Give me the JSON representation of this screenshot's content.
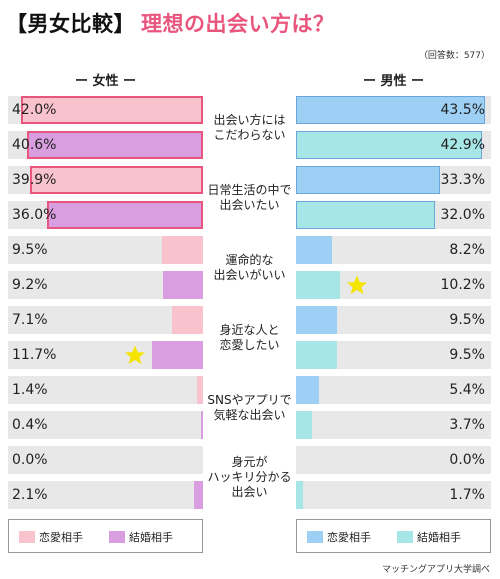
{
  "title": {
    "prefix": "【男女比較】",
    "main": "理想の出会い方は？"
  },
  "sample_note": "（回答数：577）",
  "source": "マッチングアプリ大学調べ",
  "colors": {
    "female_love": "#f9c3ce",
    "female_marriage": "#d99ee0",
    "male_love": "#9ed0f6",
    "male_marriage": "#a7e6e6",
    "accent": "#e9567d",
    "star": "#f5e400",
    "track": "#e8e8e8"
  },
  "chart_data": {
    "type": "bar",
    "title": "理想の出会い方は？",
    "panels": [
      {
        "name": "女性",
        "header": "ー 女性 ー"
      },
      {
        "name": "男性",
        "header": "ー 男性 ー"
      }
    ],
    "categories": [
      [
        "出会い方には",
        "こだわらない"
      ],
      [
        "日常生活の中で",
        "出会いたい"
      ],
      [
        "運命的な",
        "出会いがいい"
      ],
      [
        "身近な人と",
        "恋愛したい"
      ],
      [
        "SNSやアプリで",
        "気軽な出会い"
      ],
      [
        "身元が",
        "ハッキリ分かる",
        "出会い"
      ]
    ],
    "value_max": 45,
    "female": {
      "love": [
        42.0,
        39.9,
        9.5,
        7.1,
        1.4,
        0.0
      ],
      "marriage": [
        40.6,
        36.0,
        9.2,
        11.7,
        0.4,
        2.1
      ],
      "love_labels": [
        "42.0%",
        "39.9%",
        "9.5%",
        "7.1%",
        "1.4%",
        "0.0%"
      ],
      "marriage_labels": [
        "40.6%",
        "36.0%",
        "9.2%",
        "11.7%",
        "0.4%",
        "2.1%"
      ]
    },
    "male": {
      "love": [
        43.5,
        33.3,
        8.2,
        9.5,
        5.4,
        0.0
      ],
      "marriage": [
        42.9,
        32.0,
        10.2,
        9.5,
        3.7,
        1.7
      ],
      "love_labels": [
        "43.5%",
        "33.3%",
        "8.2%",
        "9.5%",
        "5.4%",
        "0.0%"
      ],
      "marriage_labels": [
        "42.9%",
        "32.0%",
        "10.2%",
        "9.5%",
        "3.7%",
        "1.7%"
      ]
    },
    "highlights": [
      {
        "panel": "female",
        "series": "marriage",
        "category": 3,
        "marker": "star"
      },
      {
        "panel": "male",
        "series": "marriage",
        "category": 2,
        "marker": "star"
      }
    ],
    "legend": {
      "female": [
        "恋愛相手",
        "結婚相手"
      ],
      "male": [
        "恋愛相手",
        "結婚相手"
      ]
    }
  }
}
